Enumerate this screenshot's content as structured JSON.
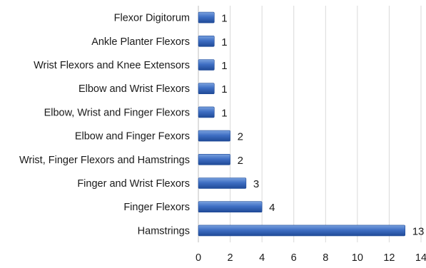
{
  "chart_data": {
    "type": "bar",
    "orientation": "horizontal",
    "categories": [
      "Hamstrings",
      "Finger Flexors",
      "Finger and Wrist Flexors",
      "Wrist, Finger Flexors and Hamstrings",
      "Elbow and Finger Fexors",
      "Elbow, Wrist and Finger Flexors",
      "Elbow and Wrist Flexors",
      "Wrist Flexors and Knee Extensors",
      "Ankle Planter Flexors",
      "Flexor Digitorum"
    ],
    "values": [
      13,
      4,
      3,
      2,
      2,
      1,
      1,
      1,
      1,
      1
    ],
    "xlim": [
      0,
      14
    ],
    "xticks": [
      0,
      2,
      4,
      6,
      8,
      10,
      12,
      14
    ],
    "grid": true,
    "legend": "none",
    "title": "",
    "xlabel": "",
    "ylabel": "",
    "colors": {
      "bar_light": "#6f97d8",
      "bar_mid": "#3f6fc4",
      "bar_dark": "#1f4a97",
      "grid": "#d9d9d9"
    }
  }
}
